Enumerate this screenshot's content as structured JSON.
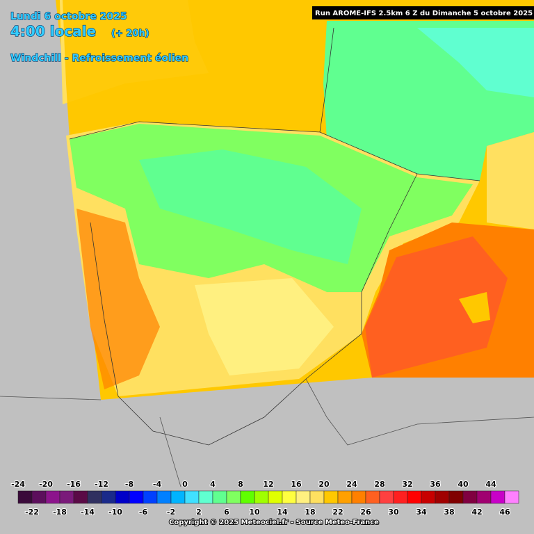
{
  "header": {
    "date": "Lundi 6 octobre 2025",
    "time": "4:00 locale",
    "lead": "(+ 20h)",
    "parameter": "Windchill - Refroissement éolien"
  },
  "run": "Run AROME-IFS 2.5km 6 Z du Dimanche 5 octobre 2025",
  "legend": {
    "values": [
      -24,
      -22,
      -20,
      -18,
      -16,
      -14,
      -12,
      -10,
      -8,
      -6,
      -4,
      -2,
      0,
      2,
      4,
      6,
      8,
      10,
      12,
      14,
      16,
      18,
      20,
      22,
      24,
      26,
      28,
      30,
      32,
      34,
      36,
      38,
      40,
      42,
      44,
      46
    ],
    "colors": [
      "#3a0a3a",
      "#5c0f5c",
      "#8c148c",
      "#7a1a7a",
      "#5a0a46",
      "#303060",
      "#1a2a8a",
      "#0000c8",
      "#0000ff",
      "#0040ff",
      "#0080ff",
      "#00b4ff",
      "#40e0ff",
      "#60ffd0",
      "#60ff90",
      "#80ff60",
      "#60ff00",
      "#a0ff00",
      "#e0ff00",
      "#ffff40",
      "#fff080",
      "#ffe060",
      "#ffc800",
      "#ffa000",
      "#ff8000",
      "#ff6020",
      "#ff4040",
      "#ff2020",
      "#ff0000",
      "#c80000",
      "#a00000",
      "#800000",
      "#800040",
      "#a00070",
      "#c800c8",
      "#ff80ff"
    ]
  },
  "copyright": "Copyright © 2025 Meteociel.fr - Source Meteo-France"
}
